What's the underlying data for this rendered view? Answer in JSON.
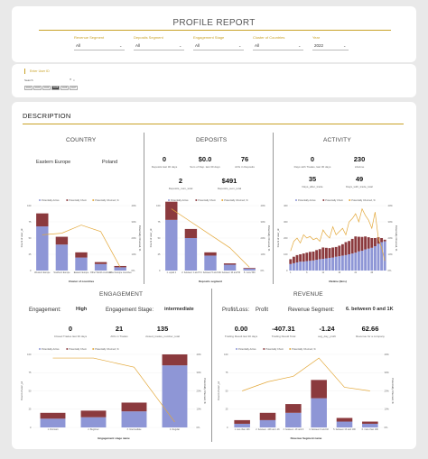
{
  "header": {
    "title": "PROFILE REPORT"
  },
  "filters": [
    {
      "label": "Revenue Segment",
      "value": "All"
    },
    {
      "label": "Deposits Segment",
      "value": "All"
    },
    {
      "label": "Engagement Stage",
      "value": "All"
    },
    {
      "label": "Cluster of Countries",
      "value": "All"
    },
    {
      "label": "Year",
      "value": "2022"
    }
  ],
  "user": {
    "label": "Enter User ID",
    "search": "Search",
    "buttons": [
      "2022",
      "2023",
      "2024",
      "2025",
      "2026",
      "2027"
    ],
    "selected_index": 3
  },
  "description": {
    "title": "DESCRIPTION"
  },
  "legend": {
    "active": "Potentially Active",
    "churn": "Potentially Churn",
    "pct": "Potentially Churned, %"
  },
  "colors": {
    "active": "#8e96d6",
    "churn": "#8b3a3e",
    "line": "#e3a83a",
    "accent": "#c9a227"
  },
  "country": {
    "title": "COUNTRY",
    "left_value": "Eastern Europe",
    "right_value": "Poland",
    "ylabel": "Count of user_id",
    "y2label": "Potentially Churned, %",
    "xlabel": "Cluster of countries"
  },
  "deposits": {
    "title": "DEPOSITS",
    "kpis": [
      {
        "value": "0",
        "label": "Deposits last 30 days"
      },
      {
        "value": "$0.0",
        "label": "Sum of Dep. last 30 days"
      },
      {
        "value": "76",
        "label": "AVG in Deposits"
      },
      {
        "value": "2",
        "label": "Deposits_num_total"
      },
      {
        "value": "$491",
        "label": "Deposits_sum_total"
      }
    ],
    "ylabel": "Count of user_id",
    "y2label": "Potentially Churned, %",
    "xlabel": "Deposits segment"
  },
  "activity": {
    "title": "ACTIVITY",
    "kpis": [
      {
        "value": "0",
        "label": "Days with Trades, last 30 days"
      },
      {
        "value": "230",
        "label": "Lifetime"
      },
      {
        "value": "35",
        "label": "Days_after_trade"
      },
      {
        "value": "49",
        "label": "Days_with_trade_total"
      }
    ],
    "ylabel": "Count of user_id",
    "y2label": "Potentially Churned, %",
    "xlabel": "lifetime (bins)"
  },
  "engagement": {
    "title": "ENGAGEMENT",
    "engagement_label": "Engagement:",
    "engagement_value": "High",
    "stage_label": "Engagement Stage:",
    "stage_value": "intermediate",
    "kpis": [
      {
        "value": "0",
        "label": "Closed Trades last 30 days"
      },
      {
        "value": "21",
        "label": "AVG in Trades"
      },
      {
        "value": "135",
        "label": "closed_trades_number_total"
      }
    ],
    "ylabel": "Count of user_id",
    "y2label": "Potentially Churned, %",
    "xlabel": "Engagement stage name"
  },
  "revenue": {
    "title": "REVENUE",
    "pl_label": "Profit/Loss:",
    "pl_value": "Profit",
    "seg_label": "Revenue Segment:",
    "seg_value": "6. between 0 and 1K",
    "kpis": [
      {
        "value": "0.00",
        "label": "Trading Result last 30 days"
      },
      {
        "value": "-407.31",
        "label": "Trading Result Total"
      },
      {
        "value": "-1.24",
        "label": "avg_day_profit"
      },
      {
        "value": "62.66",
        "label": "Revenue for a company"
      }
    ],
    "ylabel": "Count of user_id",
    "y2label": "Potentially Churned, %",
    "xlabel": "Revenue Segment name"
  },
  "chart_data": [
    {
      "type": "bar",
      "id": "country",
      "categories": [
        "Western Europe",
        "Southern Europe",
        "Eastern Europe",
        "Other World countries",
        "Other Europe countries"
      ],
      "series": [
        {
          "name": "Potentially Active",
          "values": [
            68,
            40,
            20,
            10,
            5
          ]
        },
        {
          "name": "Potentially Churn",
          "values": [
            20,
            12,
            8,
            3,
            2
          ]
        },
        {
          "name": "Potentially Churned, %",
          "values": [
            22,
            23,
            28,
            24,
            2
          ]
        }
      ],
      "ylim": [
        0,
        100
      ],
      "y2lim": [
        0,
        40
      ]
    },
    {
      "type": "bar",
      "id": "deposits",
      "categories": [
        "1. equal 1",
        "2. between 1 and 5",
        "3. between 5 and 10",
        "4. between 10 and 50",
        "5. more 500"
      ],
      "series": [
        {
          "name": "Potentially Active",
          "values": [
            78,
            50,
            23,
            9,
            3
          ]
        },
        {
          "name": "Potentially Churn",
          "values": [
            28,
            14,
            5,
            2,
            1
          ]
        },
        {
          "name": "Potentially Churned, %",
          "values": [
            38,
            30,
            22,
            14,
            2
          ]
        }
      ],
      "ylim": [
        0,
        100
      ],
      "y2lim": [
        0,
        40
      ]
    },
    {
      "type": "bar",
      "id": "activity",
      "categories": [
        "1",
        "2",
        "3",
        "4",
        "5",
        "6",
        "7",
        "8",
        "9",
        "10",
        "11",
        "12",
        "13",
        "14",
        "15",
        "16",
        "17",
        "18",
        "19",
        "20",
        "21",
        "22",
        "23",
        "24",
        "25",
        "26",
        "27",
        "28",
        "29",
        "30"
      ],
      "series": [
        {
          "name": "Potentially Active",
          "values": [
            40,
            45,
            50,
            55,
            55,
            58,
            60,
            62,
            66,
            70,
            72,
            75,
            78,
            80,
            85,
            88,
            92,
            95,
            100,
            105,
            110,
            118,
            122,
            130,
            135,
            140,
            150,
            165,
            175,
            180
          ]
        },
        {
          "name": "Potentially Churn",
          "values": [
            30,
            40,
            45,
            45,
            50,
            52,
            55,
            55,
            60,
            62,
            70,
            65,
            60,
            62,
            60,
            65,
            70,
            80,
            82,
            90,
            100,
            90,
            85,
            80,
            70,
            60,
            50,
            40,
            25,
            10
          ]
        },
        {
          "name": "Potentially Churned, %",
          "values": [
            12,
            18,
            20,
            17,
            22,
            20,
            21,
            19,
            20,
            18,
            25,
            22,
            20,
            27,
            22,
            24,
            26,
            22,
            30,
            32,
            35,
            30,
            38,
            34,
            31,
            26,
            36,
            20,
            14,
            6
          ]
        }
      ],
      "ylim": [
        0,
        400
      ],
      "y2lim": [
        0,
        40
      ]
    },
    {
      "type": "bar",
      "id": "engagement",
      "categories": [
        "1. Dormant",
        "2. Beginner",
        "3. Intermediate",
        "4. Regular"
      ],
      "series": [
        {
          "name": "Potentially Active",
          "values": [
            12,
            14,
            22,
            85
          ]
        },
        {
          "name": "Potentially Churn",
          "values": [
            8,
            9,
            12,
            15
          ]
        },
        {
          "name": "Potentially Churned, %",
          "values": [
            38,
            38,
            33,
            3
          ]
        }
      ],
      "ylim": [
        0,
        100
      ],
      "y2lim": [
        0,
        40
      ]
    },
    {
      "type": "bar",
      "id": "revenue",
      "categories": [
        "1. less than 10K",
        "2. between -10K and -1K",
        "3. between -1K and 0",
        "4. between 0 and 1K",
        "5. between 1K and 10K",
        "6. more than 10K"
      ],
      "series": [
        {
          "name": "Potentially Active",
          "values": [
            5,
            10,
            20,
            40,
            8,
            5
          ]
        },
        {
          "name": "Potentially Churn",
          "values": [
            5,
            10,
            12,
            25,
            5,
            3
          ]
        },
        {
          "name": "Potentially Churned, %",
          "values": [
            20,
            25,
            28,
            38,
            22,
            20
          ]
        }
      ],
      "ylim": [
        0,
        100
      ],
      "y2lim": [
        0,
        40
      ]
    }
  ]
}
